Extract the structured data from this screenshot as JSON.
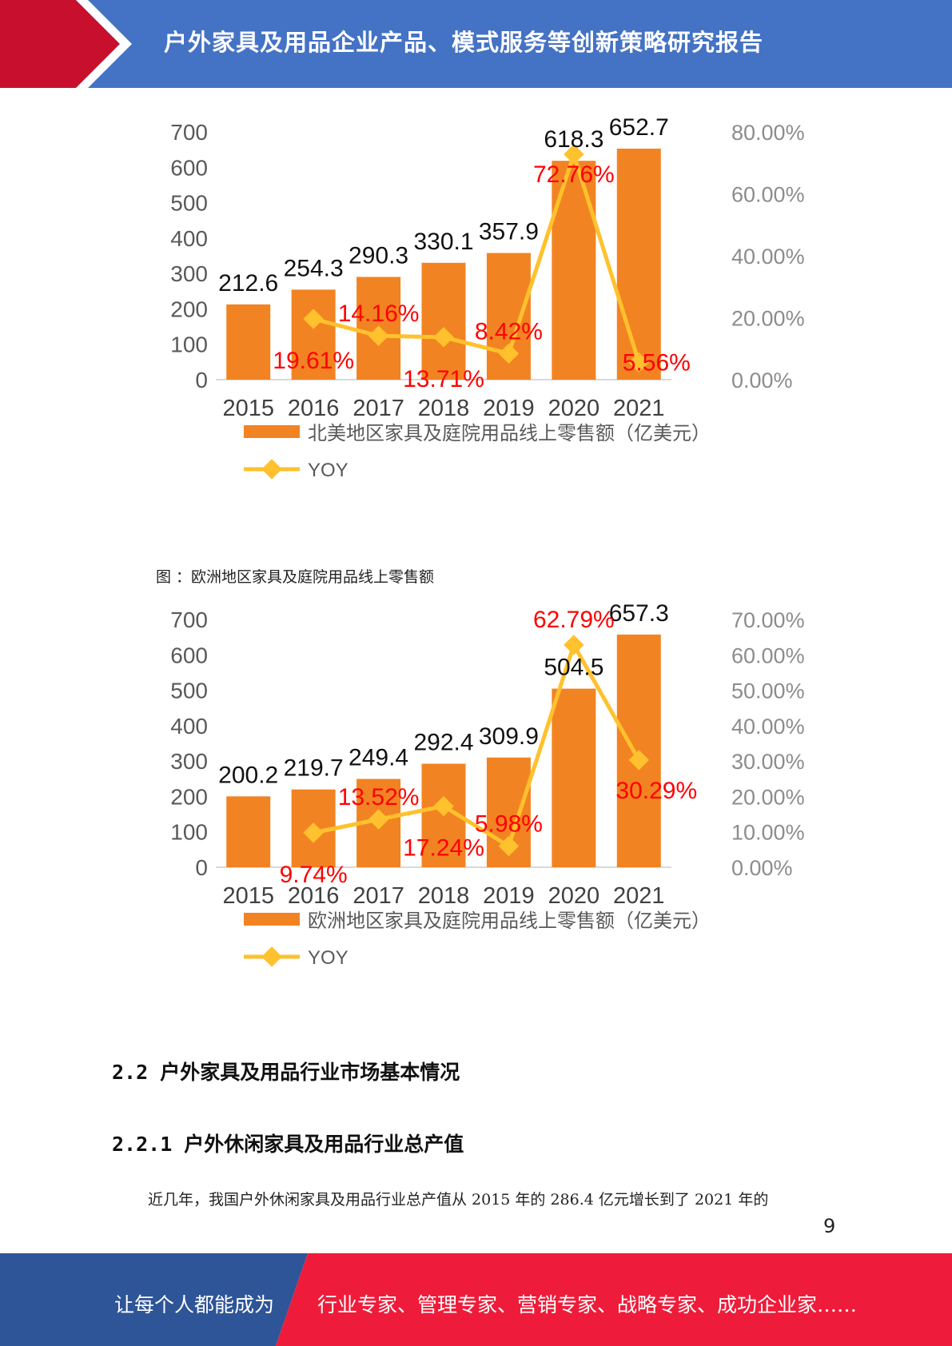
{
  "header": {
    "title": "户外家具及用品企业产品、模式服务等创新策略研究报告",
    "accent_color": "#c8102e",
    "bar_color": "#4472c4"
  },
  "caption2": "图 ：欧洲地区家具及庭院用品线上零售额",
  "chart_data": [
    {
      "type": "bar",
      "categories": [
        "2015",
        "2016",
        "2017",
        "2018",
        "2019",
        "2020",
        "2021"
      ],
      "series": [
        {
          "name": "北美地区家具及庭院用品线上零售额（亿美元）",
          "type": "bar",
          "axis": "left",
          "color": "#f28322",
          "values": [
            212.6,
            254.3,
            290.3,
            330.1,
            357.9,
            618.3,
            652.7
          ],
          "labels": [
            "212.6",
            "254.3",
            "290.3",
            "330.1",
            "357.9",
            "618.3",
            "652.7"
          ]
        },
        {
          "name": "YOY",
          "type": "line",
          "axis": "right",
          "color": "#ffc12d",
          "values": [
            null,
            19.61,
            14.16,
            13.71,
            8.42,
            72.76,
            5.56
          ],
          "labels": [
            null,
            "19.61%",
            "14.16%",
            "13.71%",
            "8.42%",
            "72.76%",
            "5.56%"
          ]
        }
      ],
      "y_left": {
        "range": [
          0,
          700
        ],
        "ticks": [
          "0",
          "100",
          "200",
          "300",
          "400",
          "500",
          "600",
          "700"
        ]
      },
      "y_right": {
        "range": [
          0,
          80
        ],
        "ticks": [
          "0.00%",
          "20.00%",
          "40.00%",
          "60.00%",
          "80.00%"
        ]
      },
      "legend_position": "bottom"
    },
    {
      "type": "bar",
      "categories": [
        "2015",
        "2016",
        "2017",
        "2018",
        "2019",
        "2020",
        "2021"
      ],
      "series": [
        {
          "name": "欧洲地区家具及庭院用品线上零售额（亿美元）",
          "type": "bar",
          "axis": "left",
          "color": "#f28322",
          "values": [
            200.2,
            219.7,
            249.4,
            292.4,
            309.9,
            504.5,
            657.3
          ],
          "labels": [
            "200.2",
            "219.7",
            "249.4",
            "292.4",
            "309.9",
            "504.5",
            "657.3"
          ]
        },
        {
          "name": "YOY",
          "type": "line",
          "axis": "right",
          "color": "#ffc12d",
          "values": [
            null,
            9.74,
            13.52,
            17.24,
            5.98,
            62.79,
            30.29
          ],
          "labels": [
            null,
            "9.74%",
            "13.52%",
            "17.24%",
            "5.98%",
            "62.79%",
            "30.29%"
          ]
        }
      ],
      "y_left": {
        "range": [
          0,
          700
        ],
        "ticks": [
          "0",
          "100",
          "200",
          "300",
          "400",
          "500",
          "600",
          "700"
        ]
      },
      "y_right": {
        "range": [
          0,
          70
        ],
        "ticks": [
          "0.00%",
          "10.00%",
          "20.00%",
          "30.00%",
          "40.00%",
          "50.00%",
          "60.00%",
          "70.00%"
        ]
      },
      "legend_position": "bottom"
    }
  ],
  "section": {
    "heading_1": "2.2 户外家具及用品行业市场基本情况",
    "heading_2": "2.2.1 户外休闲家具及用品行业总产值",
    "paragraph": "近几年，我国户外休闲家具及用品行业总产值从 2015 年的 286.4 亿元增长到了 2021 年的"
  },
  "page_number": "9",
  "footer": {
    "left_text": "让每个人都能成为",
    "right_text": "行业专家、管理专家、营销专家、战略专家、成功企业家……",
    "left_color": "#2e5597",
    "right_color": "#ee1c3a"
  }
}
